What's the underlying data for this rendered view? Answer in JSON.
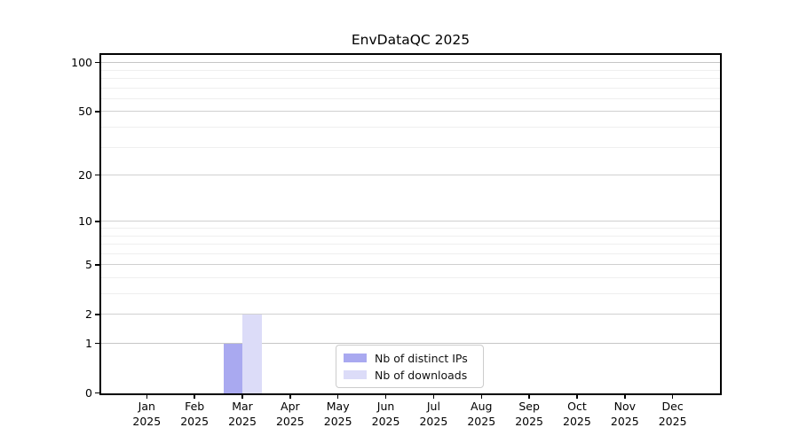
{
  "title": "EnvDataQC 2025",
  "chart_data": {
    "type": "bar",
    "title": "EnvDataQC 2025",
    "categories": [
      "Jan 2025",
      "Feb 2025",
      "Mar 2025",
      "Apr 2025",
      "May 2025",
      "Jun 2025",
      "Jul 2025",
      "Aug 2025",
      "Sep 2025",
      "Oct 2025",
      "Nov 2025",
      "Dec 2025"
    ],
    "month_labels": [
      "Jan",
      "Feb",
      "Mar",
      "Apr",
      "May",
      "Jun",
      "Jul",
      "Aug",
      "Sep",
      "Oct",
      "Nov",
      "Dec"
    ],
    "x_tick_year": "2025",
    "series": [
      {
        "name": "Nb of distinct IPs",
        "color": "#a9a9f0",
        "values": [
          0,
          0,
          1,
          0,
          0,
          0,
          0,
          0,
          0,
          0,
          0,
          0
        ]
      },
      {
        "name": "Nb of downloads",
        "color": "#dcdcf8",
        "values": [
          0,
          0,
          2,
          0,
          0,
          0,
          0,
          0,
          0,
          0,
          0,
          0
        ]
      }
    ],
    "yscale": "log1p",
    "ylim": [
      0,
      109
    ],
    "y_major_ticks": [
      0,
      1,
      2,
      5,
      10,
      20,
      50,
      100
    ],
    "y_minor_gridlines": [
      3,
      4,
      6,
      7,
      8,
      9,
      30,
      40,
      60,
      70,
      80,
      90
    ],
    "grid": "horizontal",
    "legend_position": "bottom-center",
    "colors": {
      "background": "#ffffff",
      "axis": "#000000",
      "text": "#000000",
      "grid_major": "#d0d0d0",
      "grid_minor": "#efefef",
      "legend_border": "#cccccc"
    }
  }
}
